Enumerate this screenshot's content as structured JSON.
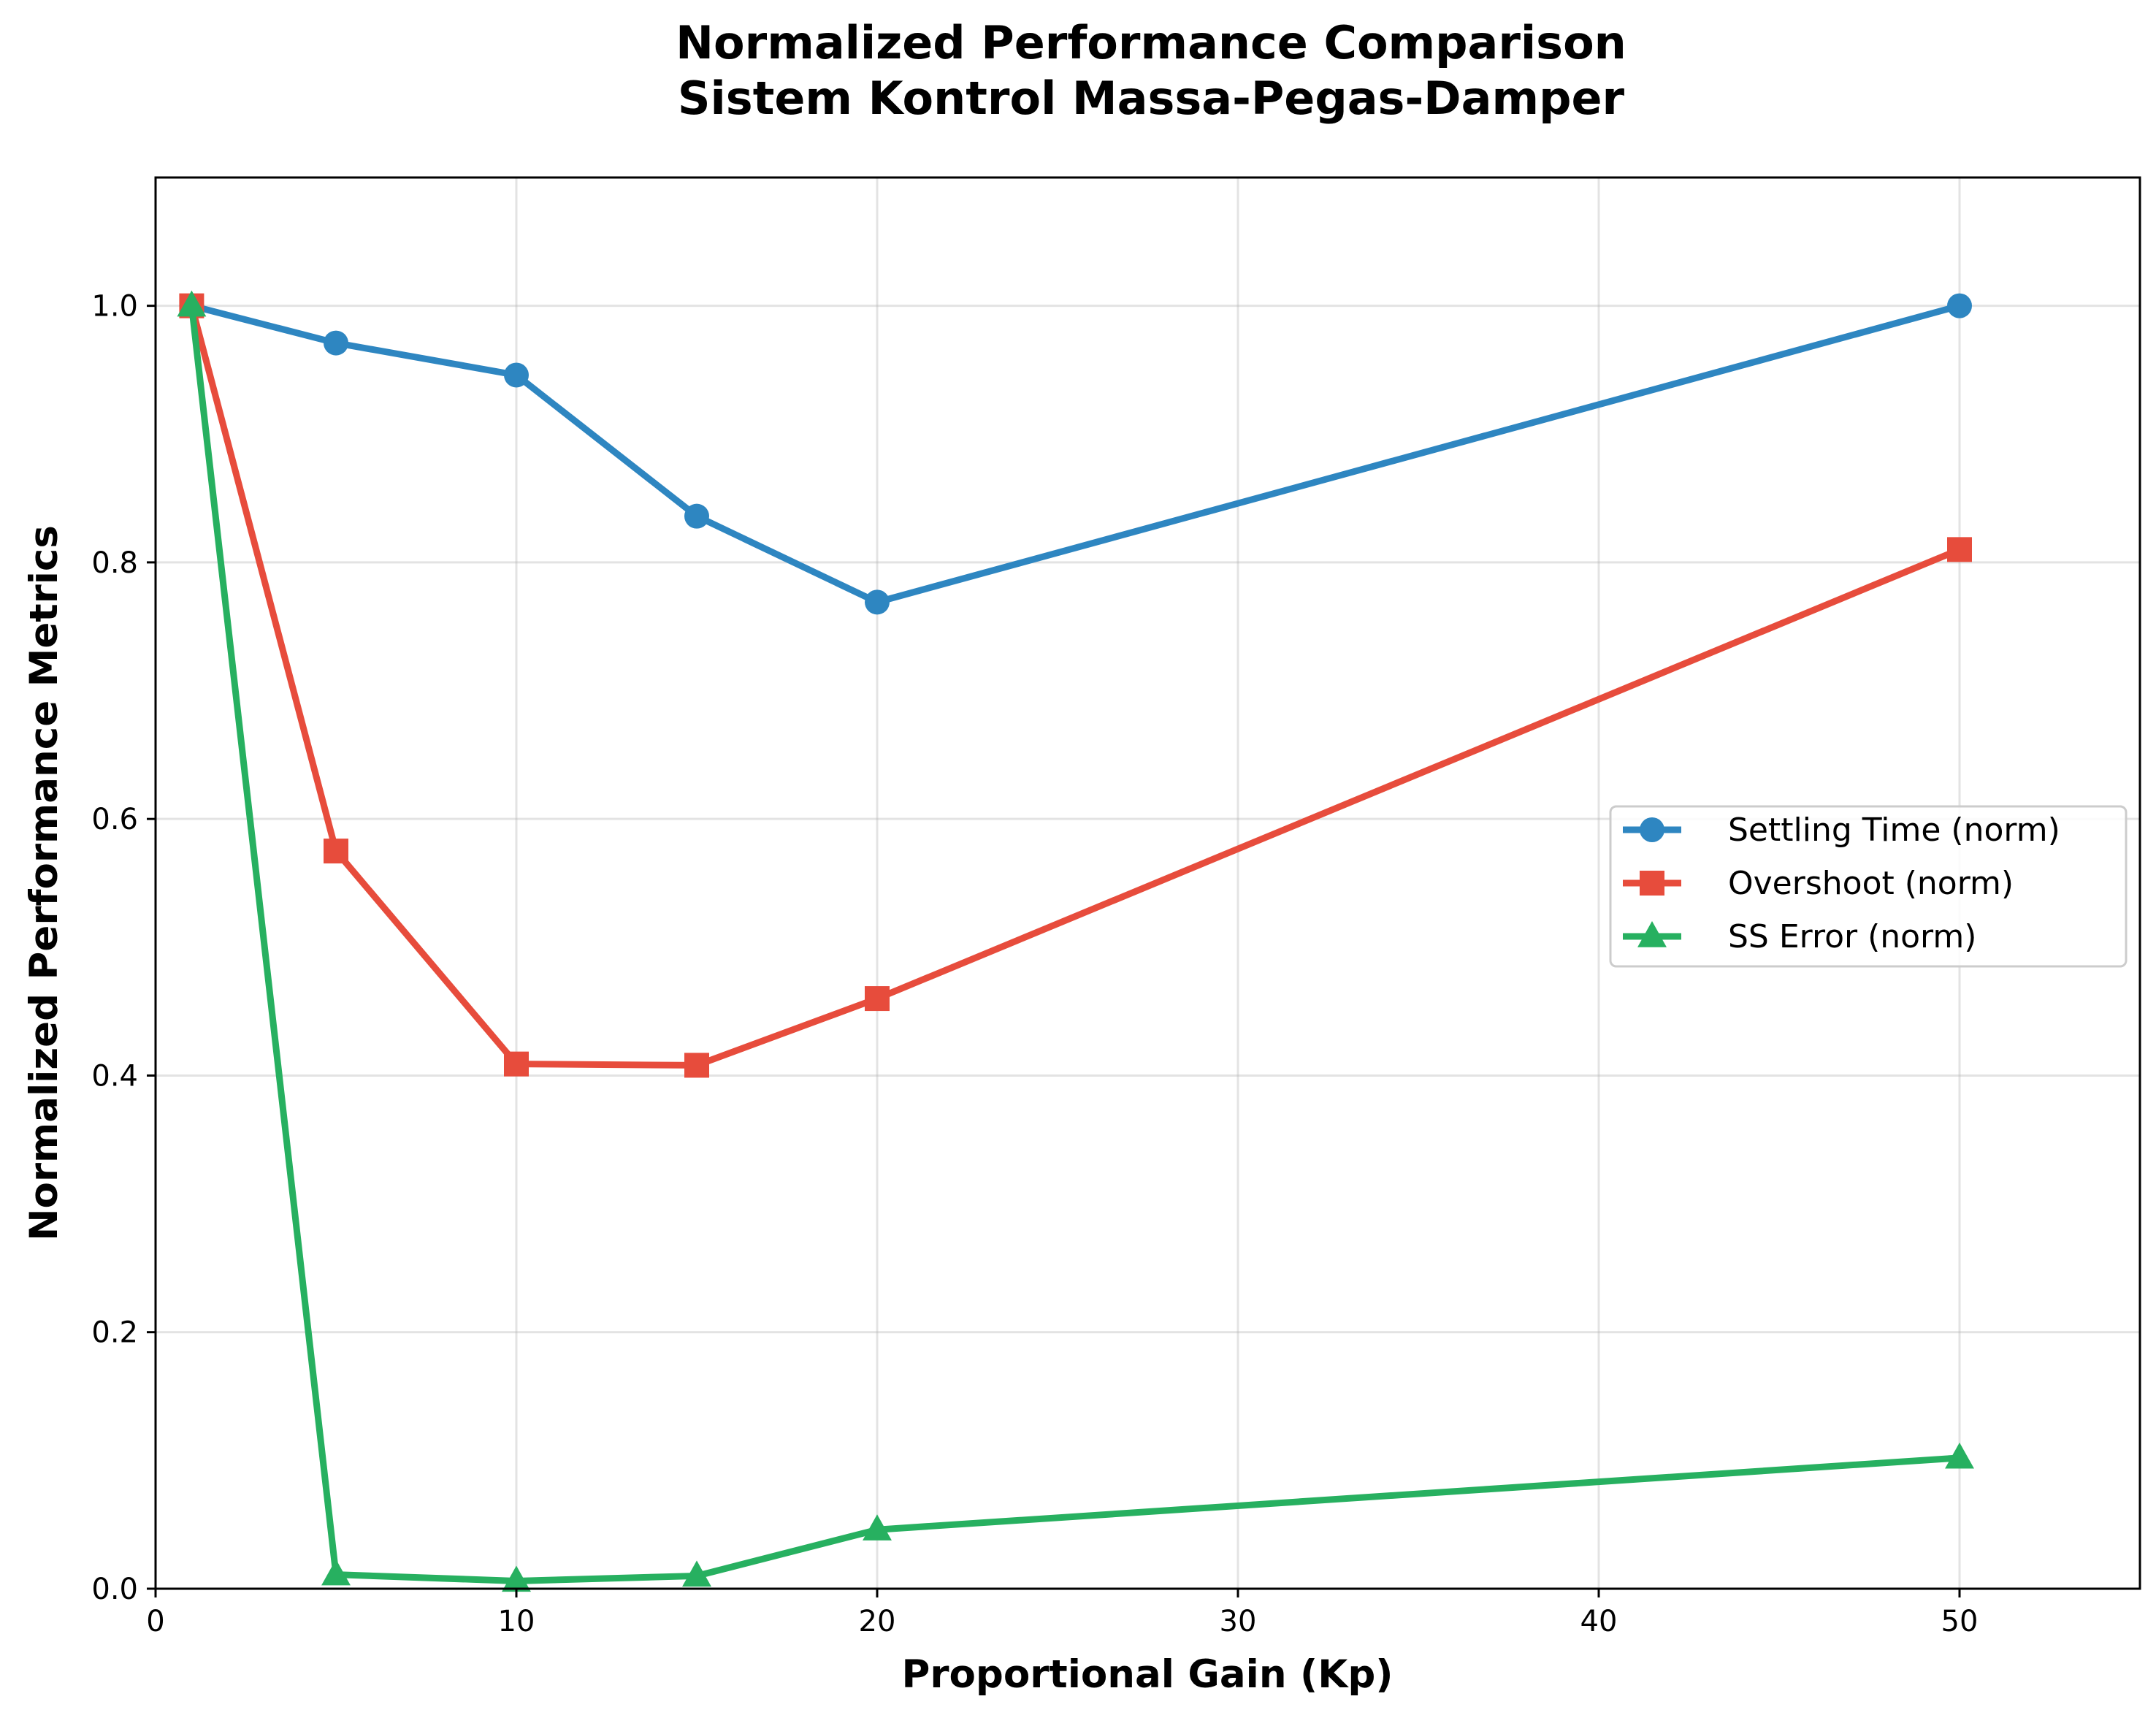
{
  "chart_data": {
    "type": "line",
    "title_lines": [
      "Normalized Performance Comparison",
      "Sistem Kontrol Massa-Pegas-Damper"
    ],
    "xlabel": "Proportional Gain (Kp)",
    "ylabel": "Normalized Performance Metrics",
    "xlim": [
      0,
      55
    ],
    "ylim": [
      0,
      1.1
    ],
    "xticks": [
      0,
      10,
      20,
      30,
      40,
      50
    ],
    "yticks": [
      0.0,
      0.2,
      0.4,
      0.6,
      0.8,
      1.0
    ],
    "xtick_labels": [
      "0",
      "10",
      "20",
      "30",
      "40",
      "50"
    ],
    "ytick_labels": [
      "0.0",
      "0.2",
      "0.4",
      "0.6",
      "0.8",
      "1.0"
    ],
    "grid": true,
    "legend_position": "center-right",
    "x": [
      1,
      5,
      10,
      15,
      20,
      50
    ],
    "series": [
      {
        "name": "Settling Time (norm)",
        "color": "#2e86c1",
        "marker": "circle",
        "values": [
          1.0,
          0.971,
          0.946,
          0.836,
          0.769,
          1.0
        ]
      },
      {
        "name": "Overshoot (norm)",
        "color": "#e74c3c",
        "marker": "square",
        "values": [
          1.0,
          0.575,
          0.409,
          0.408,
          0.46,
          0.81
        ]
      },
      {
        "name": "SS Error (norm)",
        "color": "#27b060",
        "marker": "triangle",
        "values": [
          1.0,
          0.011,
          0.006,
          0.01,
          0.046,
          0.102
        ]
      }
    ]
  }
}
